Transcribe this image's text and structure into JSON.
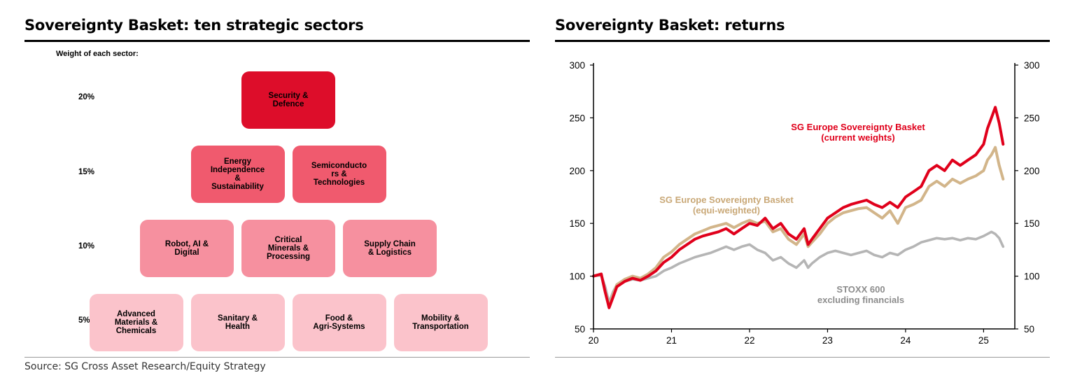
{
  "source": "Source: SG Cross Asset Research/Equity Strategy",
  "colors": {
    "level_20": "#dd0d2a",
    "level_15": "#f05a6e",
    "level_10": "#f6909f",
    "level_5": "#fbc3cb",
    "red_line": "#e0001b",
    "tan_line": "#d2b58a",
    "gray_line": "#b5b5b5"
  },
  "sectors_panel": {
    "title": "Sovereignty Basket: ten strategic sectors",
    "weight_header": "Weight of each sector:",
    "levels": [
      {
        "label": "20%",
        "boxes": [
          "Security &\nDefence"
        ]
      },
      {
        "label": "15%",
        "boxes": [
          "Energy\nIndependence\n&\nSustainability",
          "Semiconducto\nrs &\nTechnologies"
        ]
      },
      {
        "label": "10%",
        "boxes": [
          "Robot, AI &\nDigital",
          "Critical\nMinerals &\nProcessing",
          "Supply Chain\n& Logistics"
        ]
      },
      {
        "label": "5%",
        "boxes": [
          "Advanced\nMaterials &\nChemicals",
          "Sanitary &\nHealth",
          "Food &\nAgri-Systems",
          "Mobility &\nTransportation"
        ]
      }
    ]
  },
  "returns_panel": {
    "title": "Sovereignty Basket: returns"
  },
  "chart_data": {
    "type": "line",
    "title": "Sovereignty Basket: returns",
    "xlabel": "",
    "ylabel": "",
    "x_ticks": [
      "20",
      "21",
      "22",
      "23",
      "24",
      "25"
    ],
    "x_tick_values": [
      2020,
      2021,
      2022,
      2023,
      2024,
      2025
    ],
    "xlim": [
      2020.0,
      2025.4
    ],
    "ylim": [
      50,
      300
    ],
    "y_ticks": [
      50,
      100,
      150,
      200,
      250,
      300
    ],
    "y_ticks_right": [
      50,
      100,
      150,
      200,
      250,
      300
    ],
    "grid": false,
    "legend": "inline labels",
    "x": [
      2020.0,
      2020.1,
      2020.15,
      2020.2,
      2020.25,
      2020.3,
      2020.4,
      2020.5,
      2020.6,
      2020.7,
      2020.8,
      2020.9,
      2021.0,
      2021.1,
      2021.2,
      2021.3,
      2021.4,
      2021.5,
      2021.6,
      2021.7,
      2021.8,
      2021.9,
      2022.0,
      2022.1,
      2022.2,
      2022.3,
      2022.4,
      2022.5,
      2022.6,
      2022.7,
      2022.75,
      2022.8,
      2022.9,
      2023.0,
      2023.1,
      2023.2,
      2023.3,
      2023.4,
      2023.5,
      2023.6,
      2023.7,
      2023.8,
      2023.9,
      2024.0,
      2024.1,
      2024.2,
      2024.3,
      2024.4,
      2024.5,
      2024.6,
      2024.7,
      2024.8,
      2024.9,
      2025.0,
      2025.05,
      2025.1,
      2025.15,
      2025.2,
      2025.25
    ],
    "series": [
      {
        "name": "SG Europe Sovereignty Basket\n(current weights)",
        "color": "#e0001b",
        "values": [
          100,
          102,
          85,
          70,
          80,
          90,
          95,
          98,
          96,
          100,
          105,
          113,
          118,
          125,
          130,
          135,
          138,
          140,
          142,
          145,
          140,
          145,
          150,
          148,
          155,
          145,
          150,
          140,
          135,
          145,
          130,
          135,
          145,
          155,
          160,
          165,
          168,
          170,
          172,
          168,
          165,
          170,
          165,
          175,
          180,
          185,
          200,
          205,
          200,
          210,
          205,
          210,
          215,
          225,
          240,
          250,
          260,
          245,
          225
        ]
      },
      {
        "name": "SG Europe Sovereignty Basket\n(equi-weighted)",
        "color": "#d2b58a",
        "values": [
          100,
          102,
          85,
          72,
          82,
          92,
          97,
          100,
          98,
          102,
          108,
          118,
          123,
          130,
          135,
          140,
          143,
          146,
          148,
          150,
          146,
          150,
          153,
          150,
          152,
          142,
          145,
          135,
          130,
          140,
          128,
          132,
          140,
          150,
          156,
          160,
          162,
          164,
          165,
          160,
          155,
          162,
          150,
          165,
          168,
          172,
          185,
          190,
          185,
          192,
          188,
          192,
          195,
          200,
          210,
          215,
          222,
          205,
          192
        ]
      },
      {
        "name": "STOXX 600\nexcluding financials",
        "color": "#b5b5b5",
        "values": [
          100,
          101,
          90,
          75,
          85,
          92,
          95,
          97,
          96,
          98,
          100,
          105,
          108,
          112,
          115,
          118,
          120,
          122,
          125,
          128,
          125,
          128,
          130,
          125,
          122,
          115,
          118,
          112,
          108,
          115,
          108,
          112,
          118,
          122,
          124,
          122,
          120,
          122,
          124,
          120,
          118,
          122,
          120,
          125,
          128,
          132,
          134,
          136,
          135,
          136,
          134,
          136,
          135,
          138,
          140,
          142,
          140,
          136,
          128
        ]
      }
    ]
  }
}
